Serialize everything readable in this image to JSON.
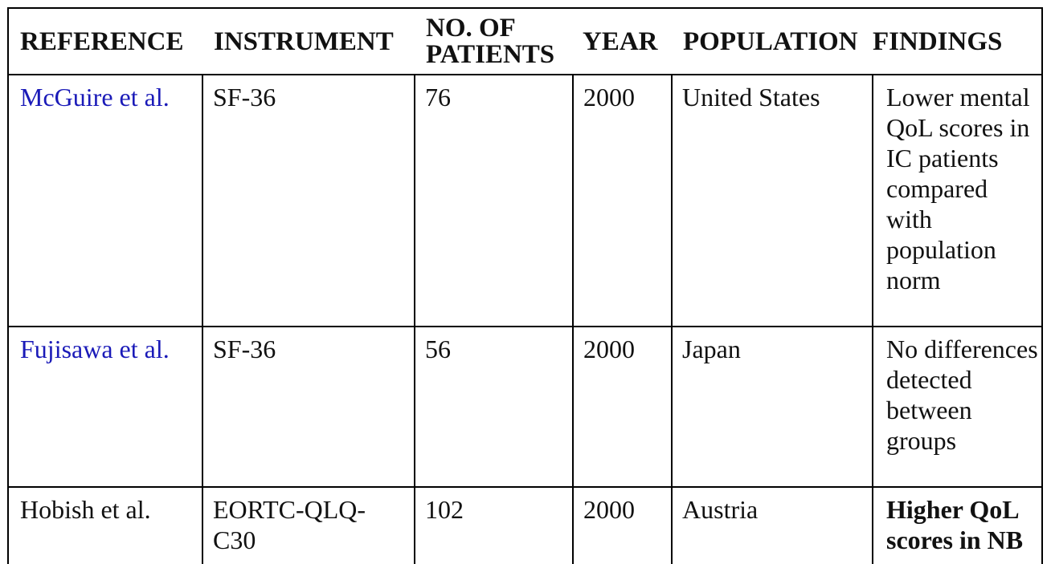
{
  "table": {
    "headers": {
      "reference": "REFERENCE",
      "instrument": "INSTRUMENT",
      "patients": "NO. OF PATIENTS",
      "year": "YEAR",
      "population": "POPULATION",
      "findings": "FINDINGS"
    },
    "rows": [
      {
        "reference": "McGuire et al.",
        "reference_is_link": true,
        "instrument": "SF-36",
        "patients": "76",
        "year": "2000",
        "population": "United States",
        "findings": "Lower mental QoL scores in IC patients compared with population norm"
      },
      {
        "reference": "Fujisawa et al.",
        "reference_is_link": true,
        "instrument": "SF-36",
        "patients": "56",
        "year": "2000",
        "population": "Japan",
        "findings": "No differences detected between groups"
      },
      {
        "reference": "Hobish et al.",
        "reference_is_link": false,
        "instrument": "EORTC-QLQ-C30",
        "patients": "102",
        "year": "2000",
        "population": "Austria",
        "findings": "Higher QoL scores in NB"
      }
    ],
    "link_color": "#1a1ab8"
  }
}
